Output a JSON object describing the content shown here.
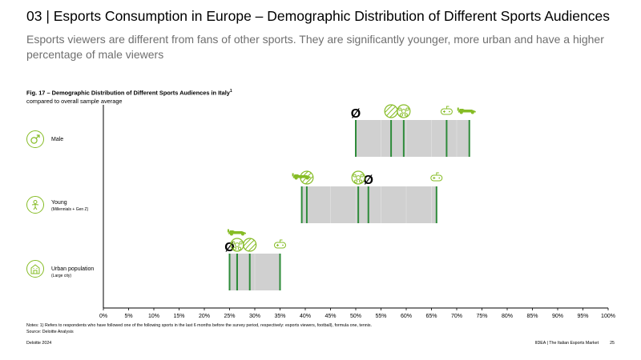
{
  "header": {
    "title": "03 | Esports Consumption in Europe – Demographic Distribution of Different Sports Audiences",
    "subtitle": "Esports viewers are different from fans of other sports. They are significantly younger, more urban and have a higher percentage of male viewers"
  },
  "figure": {
    "title": "Fig. 17 – Demographic Distribution of Different Sports Audiences in Italy",
    "title_sup": "1",
    "subtitle": "compared to overall sample average",
    "avg_symbol": "Ø"
  },
  "categories": [
    {
      "label": "Male",
      "sublabel": "",
      "icon": "male-symbol-icon"
    },
    {
      "label": "Young",
      "sublabel": "(Millennials + Gen Z)",
      "icon": "young-person-icon"
    },
    {
      "label": "Urban population",
      "sublabel": "(Large city)",
      "icon": "city-building-icon"
    }
  ],
  "notes": {
    "line1": "Notes: 1) Refers to respondents who have followed one of the following sports in the last 6 months before the survey period, respectively: esports viewers, football), formula one, tennis.",
    "line2": "Source: Deloitte Analysis"
  },
  "footer": {
    "left": "Deloitte 2024",
    "right": "IIDEA | The Italian Esports Market",
    "page": "25"
  },
  "colors": {
    "accent": "#86bc25",
    "marker": "#2e8b3a",
    "range_fill": "#d0d0d0",
    "subtitle": "#6f6f6f"
  },
  "chart_data": {
    "type": "range-marker",
    "categories": [
      "Male",
      "Young",
      "Urban population"
    ],
    "xlim": [
      0,
      100
    ],
    "xticks": [
      "0%",
      "5%",
      "10%",
      "15%",
      "20%",
      "25%",
      "30%",
      "35%",
      "40%",
      "45%",
      "50%",
      "55%",
      "60%",
      "65%",
      "70%",
      "75%",
      "80%",
      "85%",
      "90%",
      "95%",
      "100%"
    ],
    "series": [
      {
        "name": "Overall sample average",
        "symbol": "Ø",
        "values": [
          50,
          52.5,
          25
        ]
      },
      {
        "name": "Esports viewers",
        "icon": "gamepad-icon",
        "values": [
          68,
          66,
          35
        ]
      },
      {
        "name": "Football",
        "icon": "football-icon",
        "values": [
          59.5,
          50.5,
          26.5
        ]
      },
      {
        "name": "Formula One",
        "icon": "race-car-icon",
        "values": [
          72.5,
          39.3,
          26.5
        ]
      },
      {
        "name": "Tennis",
        "icon": "tennis-ball-icon",
        "values": [
          57,
          40.3,
          29
        ]
      }
    ]
  }
}
